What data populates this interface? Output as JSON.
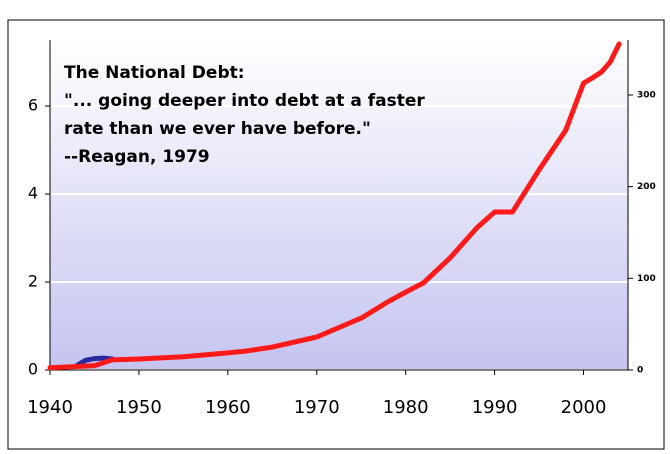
{
  "chart_data": {
    "type": "line",
    "annotation": [
      "The National Debt:",
      "\"... going deeper into debt at a faster",
      "rate than we ever have before.\"",
      "--Reagan, 1979"
    ],
    "x": [
      1940,
      1945,
      1947,
      1950,
      1955,
      1960,
      1962,
      1965,
      1970,
      1975,
      1978,
      1980,
      1982,
      1985,
      1988,
      1990,
      1992,
      1995,
      1998,
      2000,
      2001,
      2002,
      2003,
      2004
    ],
    "series": [
      {
        "color": "#2a2aa0",
        "x": [
          1943,
          1944,
          1945,
          1946,
          1947
        ],
        "values": [
          0.1,
          0.22,
          0.26,
          0.27,
          0.25
        ]
      },
      {
        "color": "#ff1a1a",
        "values": [
          0.05,
          0.1,
          0.23,
          0.25,
          0.3,
          0.39,
          0.43,
          0.52,
          0.75,
          1.18,
          1.55,
          1.77,
          1.98,
          2.55,
          3.23,
          3.59,
          3.59,
          4.55,
          5.45,
          6.52,
          6.64,
          6.77,
          7.0,
          7.41
        ]
      }
    ],
    "xlim": [
      1940,
      2005
    ],
    "xticks": [
      1940,
      1950,
      1960,
      1970,
      1980,
      1990,
      2000
    ],
    "ylim": [
      0,
      7.5
    ],
    "yticks": [
      0,
      2,
      4,
      6
    ],
    "y2lim": [
      0,
      360
    ],
    "y2ticks": [
      0,
      100,
      200,
      300
    ],
    "grid": true
  }
}
